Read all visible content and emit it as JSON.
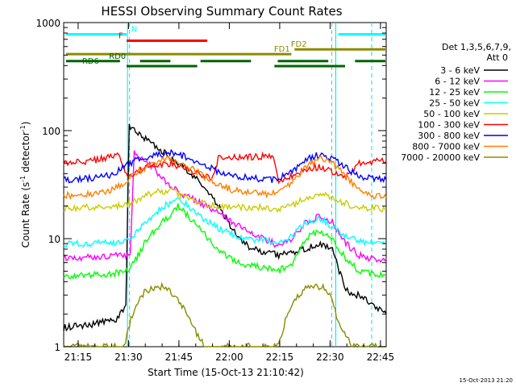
{
  "chart_data": {
    "type": "line",
    "title": "HESSI Observing Summary Count Rates",
    "xlabel": "Start Time (15-Oct-13 21:10:42)",
    "ylabel": "Count Rate (s",
    "ylabel_sup1": "-1",
    "ylabel_mid": " detector",
    "ylabel_sup2": "-1",
    "ylabel_end": ")",
    "y_scale": "log",
    "ylim": [
      1,
      1000
    ],
    "xlim_minutes": [
      0,
      96
    ],
    "x_ticks": [
      {
        "t": 4.3,
        "label": "21:15"
      },
      {
        "t": 19.3,
        "label": "21:30"
      },
      {
        "t": 34.3,
        "label": "21:45"
      },
      {
        "t": 49.3,
        "label": "22:00"
      },
      {
        "t": 64.3,
        "label": "22:15"
      },
      {
        "t": 79.3,
        "label": "22:30"
      },
      {
        "t": 94.3,
        "label": "22:45"
      }
    ],
    "y_ticks": [
      {
        "v": 1,
        "label": "1"
      },
      {
        "v": 10,
        "label": "10"
      },
      {
        "v": 100,
        "label": "100"
      },
      {
        "v": 1000,
        "label": "1000"
      }
    ],
    "legend_header": [
      "Det 1,3,5,6,7,9,",
      "Att 0"
    ],
    "legend_position": "right",
    "vertical_lines_solid": [
      19.0,
      81.0
    ],
    "vertical_lines_dashed": [
      19.6,
      79.8,
      96.0
    ],
    "series": [
      {
        "name": "3 - 6 keV",
        "color": "#000000",
        "t": [
          0,
          8,
          16,
          18.5,
          19.5,
          21,
          24,
          28,
          32,
          36,
          40,
          44,
          48,
          52,
          56,
          60,
          64,
          68,
          72,
          76,
          80,
          82,
          84,
          86,
          88,
          92,
          96
        ],
        "v": [
          1.5,
          1.6,
          1.8,
          2.5,
          110,
          105,
          85,
          70,
          55,
          45,
          35,
          25,
          16,
          10,
          8,
          7.5,
          7,
          7.5,
          8,
          9,
          8,
          5,
          3.5,
          3,
          3,
          2.5,
          2.0
        ]
      },
      {
        "name": "6 - 12 keV",
        "color": "#ff00ff",
        "t": [
          0,
          16,
          18.5,
          19.8,
          21,
          24,
          28,
          32,
          36,
          40,
          44,
          48,
          52,
          56,
          60,
          64,
          68,
          72,
          76,
          80,
          84,
          88,
          92,
          96
        ],
        "v": [
          6.5,
          7,
          7,
          7.5,
          65,
          55,
          40,
          30,
          25,
          22,
          19,
          16,
          13,
          11,
          10,
          8.5,
          10,
          14,
          16,
          14,
          9,
          7,
          6.5,
          6.5
        ]
      },
      {
        "name": "12 - 25 keV",
        "color": "#00ff00",
        "t": [
          0,
          16,
          19,
          21,
          24,
          28,
          32,
          34,
          38,
          42,
          46,
          50,
          54,
          58,
          62,
          64,
          68,
          72,
          76,
          80,
          84,
          88,
          92,
          96
        ],
        "v": [
          4.5,
          4.8,
          5,
          6,
          9,
          13,
          17,
          20,
          15,
          11,
          8,
          6.5,
          5.8,
          5.5,
          5.2,
          5,
          6,
          10,
          12,
          10,
          6.5,
          5,
          4.7,
          4.5
        ]
      },
      {
        "name": "25 - 50 keV",
        "color": "#00ffff",
        "t": [
          0,
          16,
          19,
          21,
          24,
          28,
          32,
          34,
          38,
          42,
          46,
          50,
          54,
          58,
          62,
          64,
          68,
          72,
          76,
          80,
          84,
          88,
          92,
          96
        ],
        "v": [
          9,
          9.2,
          9.5,
          11,
          14,
          18,
          22,
          24,
          19,
          15,
          12.5,
          11,
          10,
          9.8,
          9.5,
          9.3,
          10.5,
          14,
          15.5,
          13,
          10.5,
          9.5,
          9.2,
          9
        ]
      },
      {
        "name": "50 - 100 keV",
        "color": "#cccc00",
        "t": [
          0,
          16,
          19,
          21,
          24,
          28,
          32,
          34,
          38,
          42,
          46,
          50,
          54,
          58,
          62,
          64,
          68,
          72,
          76,
          80,
          84,
          88,
          92,
          96
        ],
        "v": [
          19,
          20,
          21,
          22,
          25,
          27,
          28,
          26,
          23,
          21,
          20,
          19.5,
          19.5,
          19.5,
          19,
          19,
          20,
          24,
          26,
          24,
          21,
          19.5,
          19,
          19
        ]
      },
      {
        "name": "100 - 300 keV",
        "color": "#ff0000",
        "t": [
          0,
          8,
          14,
          16,
          19,
          21,
          24,
          28,
          32,
          34,
          38,
          42,
          44,
          46,
          50,
          56,
          60,
          62,
          64,
          68,
          72,
          76,
          80,
          84,
          88,
          92,
          96
        ],
        "v": [
          50,
          52,
          58,
          62,
          38,
          40,
          45,
          48,
          50,
          47,
          42,
          38,
          36,
          55,
          56,
          57,
          58,
          60,
          35,
          38,
          44,
          46,
          42,
          38,
          50,
          52,
          52
        ]
      },
      {
        "name": "300 - 800 keV",
        "color": "#0000ff",
        "t": [
          0,
          8,
          14,
          16,
          19,
          21,
          24,
          28,
          32,
          34,
          38,
          42,
          46,
          50,
          54,
          58,
          62,
          64,
          68,
          72,
          76,
          80,
          84,
          88,
          92,
          96
        ],
        "v": [
          35,
          36,
          39,
          42,
          48,
          52,
          56,
          60,
          62,
          60,
          55,
          48,
          42,
          39,
          37,
          36,
          35,
          36,
          42,
          54,
          60,
          55,
          45,
          38,
          36,
          35
        ]
      },
      {
        "name": "800 - 7000 keV",
        "color": "#ff8000",
        "t": [
          0,
          8,
          14,
          16,
          19,
          21,
          24,
          28,
          32,
          34,
          38,
          42,
          46,
          50,
          54,
          58,
          62,
          64,
          68,
          72,
          76,
          80,
          84,
          88,
          92,
          96
        ],
        "v": [
          25,
          26,
          28,
          30,
          35,
          40,
          45,
          52,
          55,
          52,
          45,
          37,
          32,
          28.5,
          27,
          26.5,
          26,
          27,
          33,
          45,
          55,
          50,
          38,
          28,
          25,
          24
        ]
      },
      {
        "name": "7000 - 20000 keV",
        "color": "#8b8b00",
        "t": [
          0,
          16,
          18,
          20,
          22,
          24,
          26,
          30,
          32,
          34,
          36,
          38,
          42,
          44,
          46,
          62,
          64,
          66,
          68,
          72,
          76,
          78,
          80,
          82,
          86,
          96
        ],
        "v": [
          1,
          1,
          1,
          1.8,
          2.5,
          3.2,
          3.5,
          3.6,
          3.2,
          2.8,
          2.2,
          1.6,
          1,
          1,
          1,
          1,
          1,
          1.8,
          2.5,
          3.5,
          3.6,
          3.5,
          2.6,
          1.6,
          1,
          1
        ]
      }
    ],
    "flags": [
      {
        "label": "N",
        "color": "#00ffff",
        "label_at": 21,
        "segments": [
          [
            0,
            19
          ],
          [
            81,
            96
          ]
        ],
        "v": 780
      },
      {
        "label": "F",
        "color": "#ff0000",
        "label_at": 17,
        "segments": [
          [
            18,
            43
          ]
        ],
        "v": 680
      },
      {
        "label": "FD1",
        "color": "#8b8b00",
        "label_at": 65,
        "segments": [
          [
            0,
            68
          ]
        ],
        "v": 510
      },
      {
        "label": "FD2",
        "color": "#8b8b00",
        "label_at": 70,
        "segments": [
          [
            68,
            96
          ]
        ],
        "v": 565
      },
      {
        "label": "RD0",
        "color": "#006400",
        "label_at": 16,
        "segments": [
          [
            0,
            17
          ],
          [
            22,
            32
          ],
          [
            40,
            56
          ],
          [
            63,
            79
          ],
          [
            86,
            96
          ]
        ],
        "v": 440
      },
      {
        "label": "RD6",
        "color": "#006400",
        "label_at": 8,
        "segments": [
          [
            18,
            40
          ],
          [
            62,
            84
          ]
        ],
        "v": 395
      }
    ],
    "timestamp": "15-Oct-2013 21:20"
  }
}
